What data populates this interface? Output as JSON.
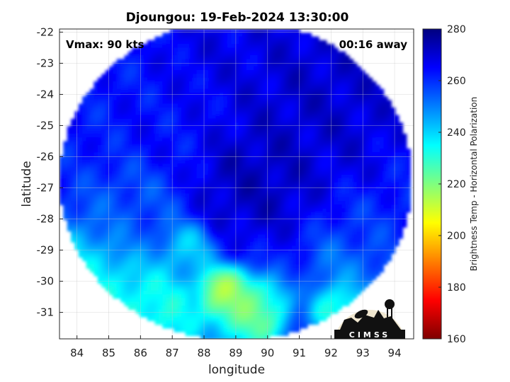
{
  "chart_data": {
    "type": "heatmap",
    "title": "Djoungou: 19-Feb-2024 13:30:00",
    "xlabel": "longitude",
    "ylabel": "latitude",
    "xlim": [
      83.45,
      94.6
    ],
    "ylim": [
      -31.85,
      -21.9
    ],
    "xticks": [
      84,
      85,
      86,
      87,
      88,
      89,
      90,
      91,
      92,
      93,
      94
    ],
    "yticks": [
      -22,
      -23,
      -24,
      -25,
      -26,
      -27,
      -28,
      -29,
      -30,
      -31
    ],
    "grid": true,
    "annotations": {
      "vmax": "Vmax: 90 kts",
      "time_offset": "00:16 away"
    },
    "colorbar": {
      "label": "Brightness Temp - Horizontal Polarization",
      "range": [
        160,
        280
      ],
      "ticks": [
        160,
        180,
        200,
        220,
        240,
        260,
        280
      ],
      "colormap": "jet",
      "colors": [
        "#7f0000",
        "#ff0000",
        "#ff7f00",
        "#ffff00",
        "#7fff7f",
        "#00ffff",
        "#007fff",
        "#0000ff",
        "#00007f"
      ]
    },
    "swath": {
      "center_lon": 89.0,
      "center_lat": -26.75,
      "extent_lon": 5.55,
      "extent_lat": 5.15
    },
    "storm_center": {
      "lon": 89.6,
      "lat": -26.7
    },
    "field_features": [
      {
        "lon": 89.6,
        "lat": -26.7,
        "spread": 1.3,
        "value": 274
      },
      {
        "lon": 91.5,
        "lat": -24.0,
        "spread": 2.0,
        "value": 272
      },
      {
        "lon": 88.7,
        "lat": -22.8,
        "spread": 1.5,
        "value": 268
      },
      {
        "lon": 87.0,
        "lat": -24.8,
        "spread": 1.2,
        "value": 264
      },
      {
        "lon": 85.7,
        "lat": -27.8,
        "spread": 1.1,
        "value": 255
      },
      {
        "lon": 84.2,
        "lat": -30.3,
        "spread": 1.5,
        "value": 232
      },
      {
        "lon": 86.3,
        "lat": -31.2,
        "spread": 1.2,
        "value": 228
      },
      {
        "lon": 88.6,
        "lat": -30.4,
        "spread": 0.6,
        "value": 210
      },
      {
        "lon": 89.5,
        "lat": -31.0,
        "spread": 0.8,
        "value": 218
      },
      {
        "lon": 87.4,
        "lat": -29.0,
        "spread": 0.6,
        "value": 238
      },
      {
        "lon": 92.3,
        "lat": -30.8,
        "spread": 0.6,
        "value": 222
      },
      {
        "lon": 92.8,
        "lat": -29.7,
        "spread": 1.0,
        "value": 248
      },
      {
        "lon": 93.3,
        "lat": -28.6,
        "spread": 1.0,
        "value": 260
      }
    ],
    "logo": {
      "text": "CIMSS"
    }
  }
}
